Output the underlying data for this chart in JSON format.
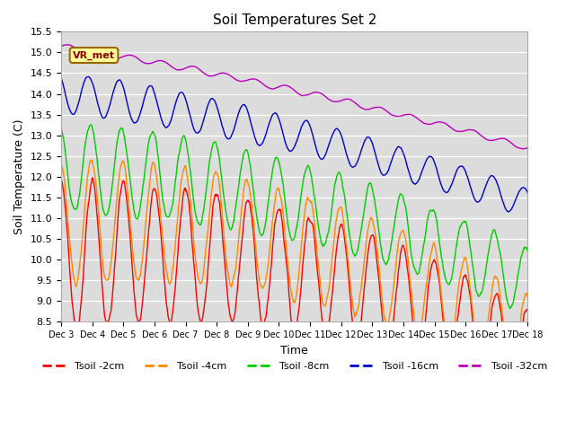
{
  "title": "Soil Temperatures Set 2",
  "xlabel": "Time",
  "ylabel": "Soil Temperature (C)",
  "ylim": [
    8.5,
    15.5
  ],
  "yticks": [
    8.5,
    9.0,
    9.5,
    10.0,
    10.5,
    11.0,
    11.5,
    12.0,
    12.5,
    13.0,
    13.5,
    14.0,
    14.5,
    15.0,
    15.5
  ],
  "colors": {
    "Tsoil -2cm": "#ff0000",
    "Tsoil -4cm": "#ff8800",
    "Tsoil -8cm": "#00cc00",
    "Tsoil -16cm": "#0000cc",
    "Tsoil -32cm": "#bb00bb"
  },
  "bg_color": "#dcdcdc",
  "annotation_text": "VR_met",
  "x_tick_labels": [
    "Dec 3",
    "Dec 4",
    "Dec 5",
    "Dec 6",
    "Dec 7",
    "Dec 8",
    "Dec 9",
    "Dec 10",
    "Dec 11",
    "Dec 12",
    "Dec 13",
    "Dec 14",
    "Dec 15",
    "Dec 16",
    "Dec 17",
    "Dec 18"
  ],
  "n_points": 720,
  "figsize": [
    6.4,
    4.8
  ],
  "dpi": 100
}
